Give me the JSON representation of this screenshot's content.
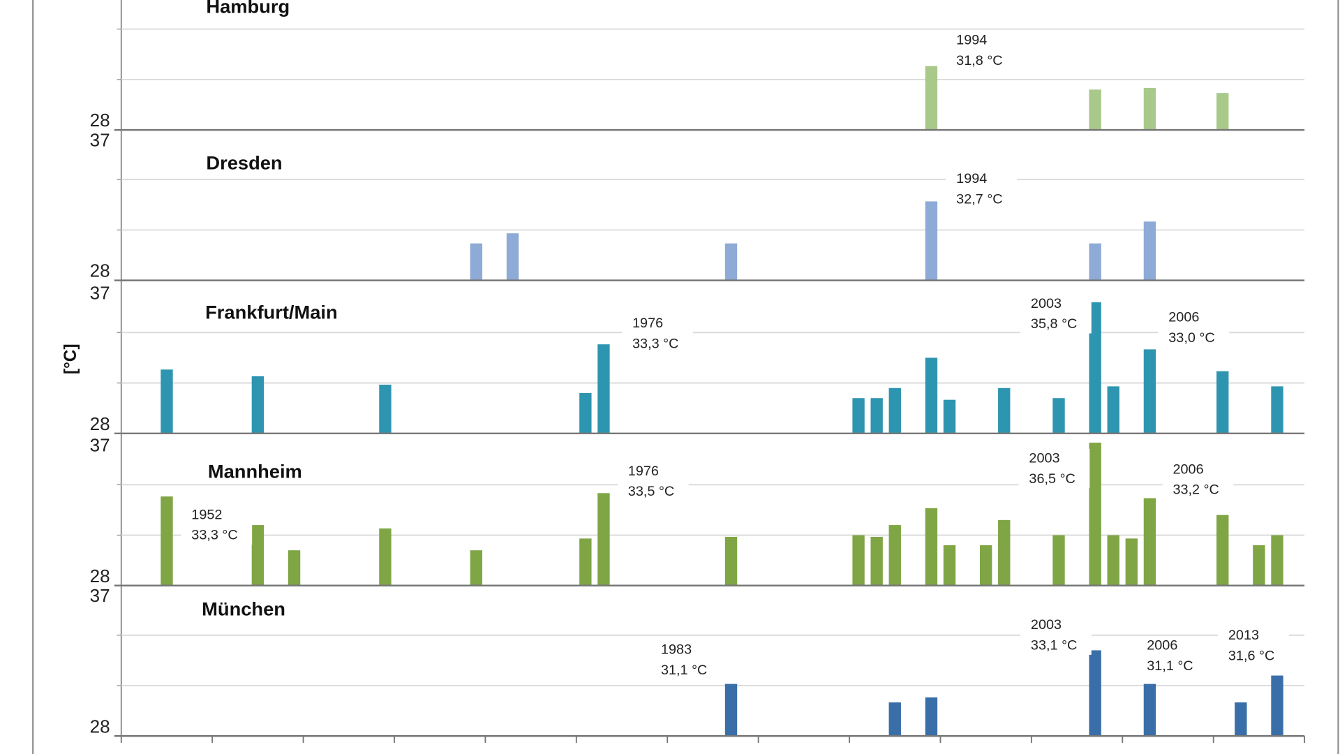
{
  "chart_data": {
    "type": "bar",
    "ylabel": "[°C]",
    "x_range": [
      1950,
      2014
    ],
    "grid": true,
    "panels": [
      {
        "name": "Hamburg",
        "color": "#a9c98b",
        "ylim": [
          28,
          37
        ],
        "yticks": [
          "28",
          "37"
        ],
        "bars": [
          {
            "year": 1994,
            "value": 31.8
          },
          {
            "year": 2003,
            "value": 30.4
          },
          {
            "year": 2006,
            "value": 30.5
          },
          {
            "year": 2010,
            "value": 30.2
          }
        ],
        "annotations": [
          {
            "year": "1994",
            "value": "31,8 °C"
          }
        ]
      },
      {
        "name": "Dresden",
        "color": "#8eaad6",
        "ylim": [
          28,
          37
        ],
        "yticks": [
          "28",
          "37"
        ],
        "bars": [
          {
            "year": 1969,
            "value": 30.2
          },
          {
            "year": 1971,
            "value": 30.8
          },
          {
            "year": 1983,
            "value": 30.2
          },
          {
            "year": 1994,
            "value": 32.7
          },
          {
            "year": 2003,
            "value": 30.2
          },
          {
            "year": 2006,
            "value": 31.5
          }
        ],
        "annotations": [
          {
            "year": "1994",
            "value": "32,7 °C"
          }
        ]
      },
      {
        "name": "Frankfurt/Main",
        "color": "#2e95b0",
        "ylim": [
          28,
          37
        ],
        "yticks": [
          "28",
          "37"
        ],
        "bars": [
          {
            "year": 1952,
            "value": 31.8
          },
          {
            "year": 1957,
            "value": 31.4
          },
          {
            "year": 1964,
            "value": 30.9
          },
          {
            "year": 1975,
            "value": 30.4
          },
          {
            "year": 1976,
            "value": 33.3
          },
          {
            "year": 1990,
            "value": 30.1
          },
          {
            "year": 1991,
            "value": 30.1
          },
          {
            "year": 1992,
            "value": 30.7
          },
          {
            "year": 1994,
            "value": 32.5
          },
          {
            "year": 1995,
            "value": 30.0
          },
          {
            "year": 1998,
            "value": 30.7
          },
          {
            "year": 2001,
            "value": 30.1
          },
          {
            "year": 2003,
            "value": 35.8
          },
          {
            "year": 2004,
            "value": 30.8
          },
          {
            "year": 2006,
            "value": 33.0
          },
          {
            "year": 2010,
            "value": 31.7
          },
          {
            "year": 2013,
            "value": 30.8
          }
        ],
        "annotations": [
          {
            "year": "1976",
            "value": "33,3 °C"
          },
          {
            "year": "2003",
            "value": "35,8 °C"
          },
          {
            "year": "2006",
            "value": "33,0 °C"
          }
        ]
      },
      {
        "name": "Mannheim",
        "color": "#7fa545",
        "ylim": [
          28,
          37
        ],
        "yticks": [
          "28",
          "37"
        ],
        "bars": [
          {
            "year": 1952,
            "value": 33.3
          },
          {
            "year": 1957,
            "value": 31.6
          },
          {
            "year": 1959,
            "value": 30.1
          },
          {
            "year": 1964,
            "value": 31.4
          },
          {
            "year": 1969,
            "value": 30.1
          },
          {
            "year": 1975,
            "value": 30.8
          },
          {
            "year": 1976,
            "value": 33.5
          },
          {
            "year": 1983,
            "value": 30.9
          },
          {
            "year": 1990,
            "value": 31.0
          },
          {
            "year": 1991,
            "value": 30.9
          },
          {
            "year": 1992,
            "value": 31.6
          },
          {
            "year": 1994,
            "value": 32.6
          },
          {
            "year": 1995,
            "value": 30.4
          },
          {
            "year": 1997,
            "value": 30.4
          },
          {
            "year": 1998,
            "value": 31.9
          },
          {
            "year": 2001,
            "value": 31.0
          },
          {
            "year": 2003,
            "value": 36.5
          },
          {
            "year": 2004,
            "value": 31.0
          },
          {
            "year": 2005,
            "value": 30.8
          },
          {
            "year": 2006,
            "value": 33.2
          },
          {
            "year": 2010,
            "value": 32.2
          },
          {
            "year": 2012,
            "value": 30.4
          },
          {
            "year": 2013,
            "value": 31.0
          }
        ],
        "annotations": [
          {
            "year": "1952",
            "value": "33,3 °C"
          },
          {
            "year": "1976",
            "value": "33,5 °C"
          },
          {
            "year": "2003",
            "value": "36,5 °C"
          },
          {
            "year": "2006",
            "value": "33,2 °C"
          }
        ]
      },
      {
        "name": "München",
        "color": "#3a6ea8",
        "ylim": [
          28,
          37
        ],
        "yticks": [
          "28",
          "37"
        ],
        "bars": [
          {
            "year": 1983,
            "value": 31.1
          },
          {
            "year": 1992,
            "value": 30.0
          },
          {
            "year": 1994,
            "value": 30.3
          },
          {
            "year": 2003,
            "value": 33.1
          },
          {
            "year": 2006,
            "value": 31.1
          },
          {
            "year": 2011,
            "value": 30.0
          },
          {
            "year": 2013,
            "value": 31.6
          }
        ],
        "annotations": [
          {
            "year": "1983",
            "value": "31,1 °C"
          },
          {
            "year": "2003",
            "value": "33,1 °C"
          },
          {
            "year": "2006",
            "value": "31,1 °C"
          },
          {
            "year": "2013",
            "value": "31,6 °C"
          }
        ]
      }
    ]
  }
}
